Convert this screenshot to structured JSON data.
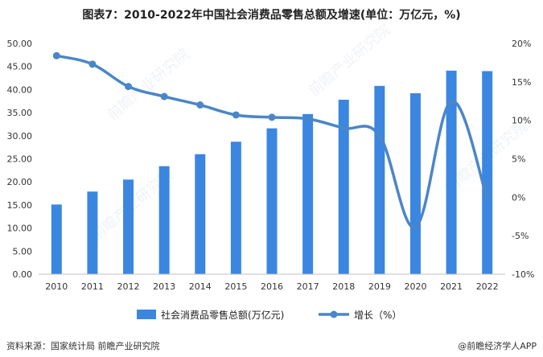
{
  "chart_data": {
    "type": "bar",
    "title": "图表7：2010-2022年中国社会消费品零售总额及增速(单位：万亿元，%)",
    "categories": [
      "2010",
      "2011",
      "2012",
      "2013",
      "2014",
      "2015",
      "2016",
      "2017",
      "2018",
      "2019",
      "2020",
      "2021",
      "2022"
    ],
    "series": [
      {
        "name": "社会消费品零售总额(万亿元)",
        "type": "bar",
        "axis": "left",
        "color": "#3b86e0",
        "values": [
          15.1,
          17.9,
          20.5,
          23.4,
          26.0,
          28.7,
          31.6,
          34.7,
          37.8,
          40.8,
          39.2,
          44.1,
          44.0
        ]
      },
      {
        "name": "增长（%）",
        "type": "line",
        "axis": "right",
        "color": "#4a86c8",
        "values": [
          18.4,
          17.3,
          14.4,
          13.1,
          12.0,
          10.7,
          10.4,
          10.2,
          9.0,
          8.0,
          -3.9,
          12.5,
          -0.2
        ]
      }
    ],
    "y_left": {
      "ylim": [
        0,
        50
      ],
      "ticks": [
        "0.00",
        "5.00",
        "10.00",
        "15.00",
        "20.00",
        "25.00",
        "30.00",
        "35.00",
        "40.00",
        "45.00",
        "50.00"
      ]
    },
    "y_right": {
      "ylim": [
        -10,
        20
      ],
      "ticks": [
        "-10%",
        "-5%",
        "0%",
        "5%",
        "10%",
        "15%",
        "20%"
      ]
    },
    "legend": {
      "position": "bottom"
    }
  },
  "footer": {
    "source": "资料来源：国家统计局 前瞻产业研究院",
    "brand": "@前瞻经济学人APP"
  },
  "watermark": "前瞻产业研究院"
}
